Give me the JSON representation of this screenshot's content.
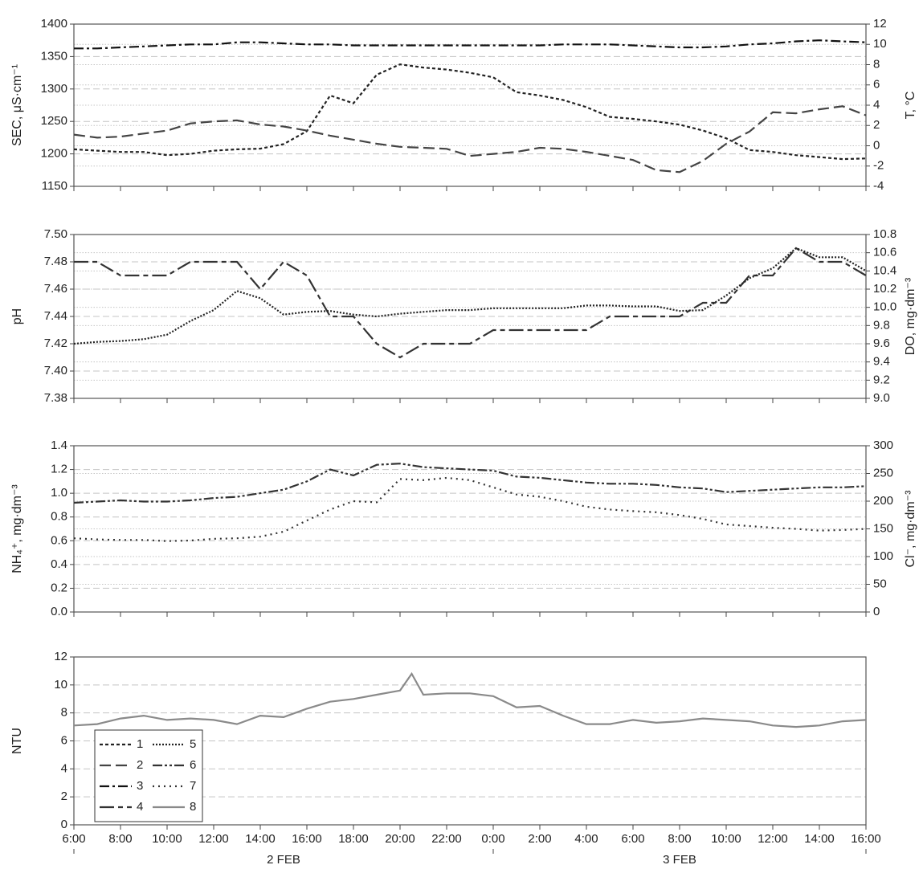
{
  "chart_data": [
    {
      "type": "line",
      "ylabel": "SEC, μS·cm⁻¹",
      "y2label": "T, °C",
      "x": [
        6,
        7,
        8,
        9,
        10,
        11,
        12,
        13,
        14,
        15,
        16,
        17,
        18,
        19,
        20,
        21,
        22,
        23,
        24,
        25,
        26,
        27,
        28,
        29,
        30,
        31,
        32,
        33,
        34,
        35,
        36,
        37,
        38,
        39,
        40
      ],
      "xlim": [
        6,
        40
      ],
      "ylim": [
        1150,
        1400
      ],
      "yticks": [
        1150,
        1200,
        1250,
        1300,
        1350,
        1400
      ],
      "y2lim": [
        -4,
        12
      ],
      "y2ticks": [
        -4,
        -2,
        0,
        2,
        4,
        6,
        8,
        10,
        12
      ],
      "grid": true,
      "series": [
        {
          "name": "1",
          "color": "#222222",
          "dash": "4 3",
          "values": [
            1207,
            1205,
            1203,
            1203,
            1198,
            1200,
            1205,
            1207,
            1208,
            1215,
            1235,
            1290,
            1278,
            1322,
            1338,
            1333,
            1330,
            1325,
            1318,
            1295,
            1290,
            1283,
            1272,
            1257,
            1254,
            1250,
            1245,
            1236,
            1224,
            1206,
            1203,
            1198,
            1195,
            1192,
            1193
          ]
        },
        {
          "name": "2",
          "color": "#444444",
          "dash": "14 6",
          "axis": "y2",
          "values": [
            1.1,
            0.8,
            0.9,
            1.2,
            1.5,
            2.2,
            2.4,
            2.5,
            2.1,
            1.9,
            1.5,
            1.0,
            0.6,
            0.2,
            -0.1,
            -0.2,
            -0.3,
            -1.0,
            -0.8,
            -0.6,
            -0.2,
            -0.3,
            -0.6,
            -1.0,
            -1.4,
            -2.4,
            -2.6,
            -1.5,
            0.2,
            1.4,
            3.3,
            3.2,
            3.6,
            3.9,
            3.0
          ]
        },
        {
          "name": "3",
          "color": "#111111",
          "dash": "12 4 3 4",
          "axis": "y2",
          "values": [
            9.6,
            9.6,
            9.7,
            9.8,
            9.9,
            10.0,
            10.0,
            10.2,
            10.2,
            10.1,
            10.0,
            10.0,
            9.9,
            9.9,
            9.9,
            9.9,
            9.9,
            9.9,
            9.9,
            9.9,
            9.9,
            10.0,
            10.0,
            10.0,
            9.9,
            9.8,
            9.7,
            9.7,
            9.8,
            10.0,
            10.1,
            10.3,
            10.4,
            10.3,
            10.2
          ]
        }
      ]
    },
    {
      "type": "line",
      "ylabel": "pH",
      "y2label": "DO, mg·dm⁻³",
      "x": [
        6,
        7,
        8,
        9,
        10,
        11,
        12,
        13,
        14,
        15,
        16,
        17,
        18,
        19,
        20,
        21,
        22,
        23,
        24,
        25,
        26,
        27,
        28,
        29,
        30,
        31,
        32,
        33,
        34,
        35,
        36,
        37,
        38,
        39,
        40
      ],
      "xlim": [
        6,
        40
      ],
      "ylim": [
        7.38,
        7.5
      ],
      "yticks": [
        {
          "value": 7.38,
          "label": "7.38"
        },
        {
          "value": 7.4,
          "label": "7.40"
        },
        {
          "value": 7.42,
          "label": "7.42"
        },
        {
          "value": 7.44,
          "label": "7.44"
        },
        {
          "value": 7.46,
          "label": "7.46"
        },
        {
          "value": 7.48,
          "label": "7.48"
        },
        {
          "value": 7.5,
          "label": "7.50"
        }
      ],
      "y2lim": [
        9.0,
        10.8
      ],
      "y2ticks": [
        {
          "value": 9,
          "label": "9.0"
        },
        {
          "value": 9.2,
          "label": "9.2"
        },
        {
          "value": 9.4,
          "label": "9.4"
        },
        {
          "value": 9.6,
          "label": "9.6"
        },
        {
          "value": 9.8,
          "label": "9.8"
        },
        {
          "value": 10,
          "label": "10.0"
        },
        {
          "value": 10.2,
          "label": "10.2"
        },
        {
          "value": 10.4,
          "label": "10.4"
        },
        {
          "value": 10.6,
          "label": "10.6"
        },
        {
          "value": 10.8,
          "label": "10.8"
        }
      ],
      "grid": true,
      "series": [
        {
          "name": "4",
          "color": "#333333",
          "dash": "18 5 6 5",
          "values": [
            7.48,
            7.48,
            7.47,
            7.47,
            7.47,
            7.48,
            7.48,
            7.48,
            7.46,
            7.48,
            7.47,
            7.44,
            7.44,
            7.42,
            7.41,
            7.42,
            7.42,
            7.42,
            7.43,
            7.43,
            7.43,
            7.43,
            7.43,
            7.44,
            7.44,
            7.44,
            7.44,
            7.45,
            7.45,
            7.47,
            7.47,
            7.49,
            7.48,
            7.48,
            7.47
          ]
        },
        {
          "name": "5",
          "color": "#222222",
          "dash": "2 2",
          "axis": "y2",
          "values": [
            9.6,
            9.62,
            9.63,
            9.65,
            9.7,
            9.85,
            9.97,
            10.18,
            10.1,
            9.92,
            9.95,
            9.96,
            9.92,
            9.9,
            9.93,
            9.95,
            9.97,
            9.97,
            9.99,
            9.99,
            9.99,
            9.99,
            10.02,
            10.02,
            10.01,
            10.01,
            9.96,
            9.97,
            10.13,
            10.32,
            10.43,
            10.65,
            10.55,
            10.55,
            10.4
          ]
        }
      ]
    },
    {
      "type": "line",
      "ylabel": "NH₄⁺, mg·dm⁻³",
      "y2label": "Cl⁻, mg·dm⁻³",
      "x": [
        6,
        7,
        8,
        9,
        10,
        11,
        12,
        13,
        14,
        15,
        16,
        17,
        18,
        19,
        20,
        21,
        22,
        23,
        24,
        25,
        26,
        27,
        28,
        29,
        30,
        31,
        32,
        33,
        34,
        35,
        36,
        37,
        38,
        39,
        40
      ],
      "xlim": [
        6,
        40
      ],
      "ylim": [
        0,
        1.4
      ],
      "yticks": [
        {
          "value": 0,
          "label": "0.0"
        },
        {
          "value": 0.2,
          "label": "0.2"
        },
        {
          "value": 0.4,
          "label": "0.4"
        },
        {
          "value": 0.6,
          "label": "0.6"
        },
        {
          "value": 0.8,
          "label": "0.8"
        },
        {
          "value": 1,
          "label": "1.0"
        },
        {
          "value": 1.2,
          "label": "1.2"
        },
        {
          "value": 1.4,
          "label": "1.4"
        }
      ],
      "y2lim": [
        0,
        300
      ],
      "y2ticks": [
        0,
        50,
        100,
        150,
        200,
        250,
        300
      ],
      "grid": true,
      "series": [
        {
          "name": "6",
          "color": "#333333",
          "dash": "12 3 3 3 3 3",
          "values": [
            0.92,
            0.93,
            0.94,
            0.93,
            0.93,
            0.94,
            0.96,
            0.97,
            1.0,
            1.03,
            1.1,
            1.2,
            1.15,
            1.24,
            1.25,
            1.22,
            1.21,
            1.2,
            1.19,
            1.14,
            1.13,
            1.11,
            1.09,
            1.08,
            1.08,
            1.07,
            1.05,
            1.04,
            1.01,
            1.02,
            1.03,
            1.04,
            1.05,
            1.05,
            1.06
          ]
        },
        {
          "name": "7",
          "color": "#333333",
          "dash": "2 5",
          "axis": "y2",
          "values": [
            133,
            131,
            130,
            130,
            128,
            129,
            132,
            133,
            136,
            145,
            165,
            185,
            200,
            198,
            240,
            238,
            242,
            238,
            225,
            212,
            208,
            200,
            190,
            185,
            182,
            180,
            175,
            168,
            158,
            155,
            152,
            150,
            147,
            148,
            150
          ]
        }
      ]
    },
    {
      "type": "line",
      "ylabel": "NTU",
      "x": [
        6,
        7,
        8,
        9,
        10,
        11,
        12,
        13,
        14,
        15,
        16,
        17,
        18,
        19,
        20,
        20.5,
        21,
        22,
        23,
        24,
        25,
        26,
        27,
        28,
        29,
        30,
        31,
        32,
        33,
        34,
        35,
        36,
        37,
        38,
        39,
        40
      ],
      "xlim": [
        6,
        40
      ],
      "ylim": [
        0,
        12
      ],
      "yticks": [
        0,
        2,
        4,
        6,
        8,
        10,
        12
      ],
      "grid": true,
      "legend": "lower left",
      "xticks": [
        {
          "value": 6,
          "label": "6:00"
        },
        {
          "value": 8,
          "label": "8:00"
        },
        {
          "value": 10,
          "label": "10:00"
        },
        {
          "value": 12,
          "label": "12:00"
        },
        {
          "value": 14,
          "label": "14:00"
        },
        {
          "value": 16,
          "label": "16:00"
        },
        {
          "value": 18,
          "label": "18:00"
        },
        {
          "value": 20,
          "label": "20:00"
        },
        {
          "value": 22,
          "label": "22:00"
        },
        {
          "value": 24,
          "label": "0:00"
        },
        {
          "value": 26,
          "label": "2:00"
        },
        {
          "value": 28,
          "label": "4:00"
        },
        {
          "value": 30,
          "label": "6:00"
        },
        {
          "value": 32,
          "label": "8:00"
        },
        {
          "value": 34,
          "label": "10:00"
        },
        {
          "value": 36,
          "label": "12:00"
        },
        {
          "value": 38,
          "label": "14:00"
        },
        {
          "value": 40,
          "label": "16:00"
        }
      ],
      "x_groups": [
        {
          "label": "2 FEB",
          "range": [
            6,
            24
          ]
        },
        {
          "label": "3 FEB",
          "range": [
            24,
            40
          ]
        }
      ],
      "series": [
        {
          "name": "8",
          "color": "#8a8a8a",
          "dash": "none",
          "values": [
            7.1,
            7.2,
            7.6,
            7.8,
            7.5,
            7.6,
            7.5,
            7.2,
            7.8,
            7.7,
            8.3,
            8.8,
            9.0,
            9.3,
            9.6,
            10.8,
            9.3,
            9.4,
            9.4,
            9.2,
            8.4,
            8.5,
            7.8,
            7.2,
            7.2,
            7.5,
            7.3,
            7.4,
            7.6,
            7.5,
            7.4,
            7.1,
            7.0,
            7.1,
            7.4,
            7.5
          ]
        }
      ]
    }
  ]
}
